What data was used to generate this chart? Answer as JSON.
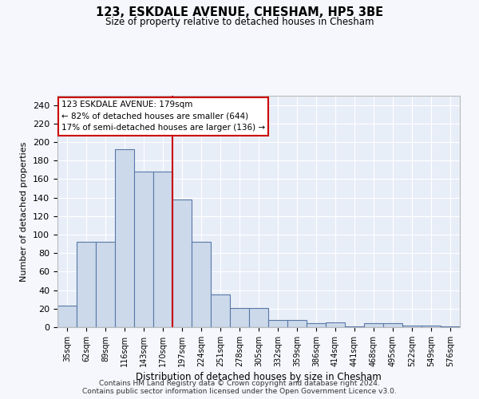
{
  "title": "123, ESKDALE AVENUE, CHESHAM, HP5 3BE",
  "subtitle": "Size of property relative to detached houses in Chesham",
  "xlabel": "Distribution of detached houses by size in Chesham",
  "ylabel": "Number of detached properties",
  "categories": [
    "35sqm",
    "62sqm",
    "89sqm",
    "116sqm",
    "143sqm",
    "170sqm",
    "197sqm",
    "224sqm",
    "251sqm",
    "278sqm",
    "305sqm",
    "332sqm",
    "359sqm",
    "386sqm",
    "414sqm",
    "441sqm",
    "468sqm",
    "495sqm",
    "522sqm",
    "549sqm",
    "576sqm"
  ],
  "values": [
    23,
    92,
    92,
    192,
    168,
    168,
    138,
    92,
    35,
    21,
    21,
    8,
    8,
    4,
    5,
    1,
    4,
    4,
    2,
    2,
    1
  ],
  "bar_color": "#ccd9ea",
  "bar_edge_color": "#5878a8",
  "annotation_label": "123 ESKDALE AVENUE: 179sqm",
  "annotation_line1": "← 82% of detached houses are smaller (644)",
  "annotation_line2": "17% of semi-detached houses are larger (136) →",
  "annotation_box_facecolor": "#ffffff",
  "annotation_box_edgecolor": "#cc0000",
  "line_color": "#cc0000",
  "line_x_index": 5.5,
  "ylim": [
    0,
    250
  ],
  "yticks": [
    0,
    20,
    40,
    60,
    80,
    100,
    120,
    140,
    160,
    180,
    200,
    220,
    240
  ],
  "bg_color": "#e8eef8",
  "grid_color": "#ffffff",
  "fig_bg": "#f5f7fc",
  "footer_line1": "Contains HM Land Registry data © Crown copyright and database right 2024.",
  "footer_line2": "Contains public sector information licensed under the Open Government Licence v3.0."
}
